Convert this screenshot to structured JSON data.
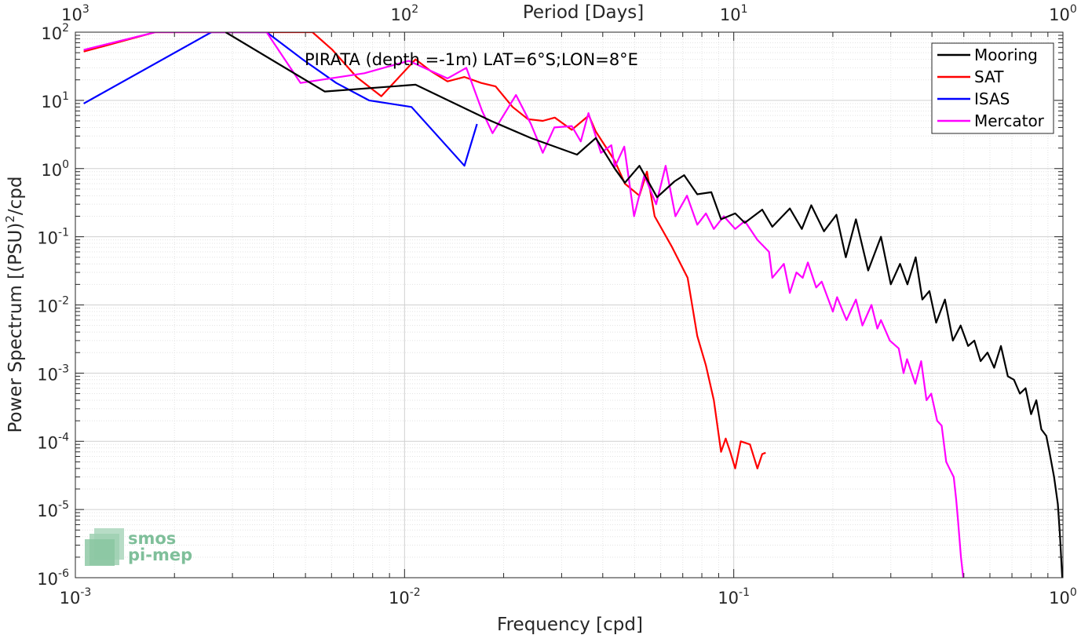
{
  "chart_data": {
    "type": "line",
    "title": "PIRATA (depth =-1m) LAT=6°S;LON=8°E",
    "xlabel": "Frequency [cpd]",
    "ylabel": "Power Spectrum [(PSU)",
    "ylabel_sup": "2",
    "ylabel_suffix": "/cpd",
    "top_xlabel": "Period [Days]",
    "x_scale": "log",
    "y_scale": "log",
    "xlim": [
      0.001,
      1
    ],
    "ylim": [
      1e-06,
      100
    ],
    "grid": true,
    "legend_position": "top-right",
    "x_ticks": [
      {
        "base": "10",
        "exp": "-3",
        "value": 0.001
      },
      {
        "base": "10",
        "exp": "-2",
        "value": 0.01
      },
      {
        "base": "10",
        "exp": "-1",
        "value": 0.1
      },
      {
        "base": "10",
        "exp": "0",
        "value": 1
      }
    ],
    "y_ticks": [
      {
        "base": "10",
        "exp": "-6",
        "value": 1e-06
      },
      {
        "base": "10",
        "exp": "-5",
        "value": 1e-05
      },
      {
        "base": "10",
        "exp": "-4",
        "value": 0.0001
      },
      {
        "base": "10",
        "exp": "-3",
        "value": 0.001
      },
      {
        "base": "10",
        "exp": "-2",
        "value": 0.01
      },
      {
        "base": "10",
        "exp": "-1",
        "value": 0.1
      },
      {
        "base": "10",
        "exp": "0",
        "value": 1
      },
      {
        "base": "10",
        "exp": "1",
        "value": 10
      },
      {
        "base": "10",
        "exp": "2",
        "value": 100
      }
    ],
    "top_ticks": [
      {
        "base": "10",
        "exp": "3",
        "value": 0.001
      },
      {
        "base": "10",
        "exp": "2",
        "value": 0.01
      },
      {
        "base": "10",
        "exp": "1",
        "value": 0.1
      },
      {
        "base": "10",
        "exp": "0",
        "value": 1
      }
    ],
    "series": [
      {
        "name": "Mooring",
        "color": "#000000",
        "points": [
          [
            0.00286,
            100
          ],
          [
            0.00572,
            13.5
          ],
          [
            0.0108,
            17
          ],
          [
            0.0183,
            5
          ],
          [
            0.0242,
            2.8
          ],
          [
            0.0334,
            1.6
          ],
          [
            0.0381,
            2.8
          ],
          [
            0.0435,
            1.0
          ],
          [
            0.0467,
            0.62
          ],
          [
            0.0517,
            1.1
          ],
          [
            0.0585,
            0.38
          ],
          [
            0.0661,
            0.65
          ],
          [
            0.0707,
            0.8
          ],
          [
            0.0775,
            0.42
          ],
          [
            0.0855,
            0.45
          ],
          [
            0.0915,
            0.18
          ],
          [
            0.101,
            0.22
          ],
          [
            0.108,
            0.16
          ],
          [
            0.122,
            0.25
          ],
          [
            0.131,
            0.14
          ],
          [
            0.148,
            0.26
          ],
          [
            0.161,
            0.13
          ],
          [
            0.172,
            0.29
          ],
          [
            0.188,
            0.12
          ],
          [
            0.205,
            0.21
          ],
          [
            0.219,
            0.05
          ],
          [
            0.235,
            0.18
          ],
          [
            0.256,
            0.032
          ],
          [
            0.28,
            0.1
          ],
          [
            0.3,
            0.02
          ],
          [
            0.32,
            0.04
          ],
          [
            0.337,
            0.02
          ],
          [
            0.357,
            0.05
          ],
          [
            0.374,
            0.012
          ],
          [
            0.393,
            0.016
          ],
          [
            0.412,
            0.0055
          ],
          [
            0.438,
            0.012
          ],
          [
            0.463,
            0.003
          ],
          [
            0.489,
            0.005
          ],
          [
            0.515,
            0.0025
          ],
          [
            0.538,
            0.003
          ],
          [
            0.562,
            0.0015
          ],
          [
            0.59,
            0.002
          ],
          [
            0.618,
            0.0012
          ],
          [
            0.648,
            0.0025
          ],
          [
            0.68,
            0.0009
          ],
          [
            0.71,
            0.0008
          ],
          [
            0.74,
            0.0005
          ],
          [
            0.77,
            0.0006
          ],
          [
            0.8,
            0.00025
          ],
          [
            0.83,
            0.0004
          ],
          [
            0.86,
            0.00015
          ],
          [
            0.89,
            0.00012
          ],
          [
            0.91,
            7e-05
          ],
          [
            0.94,
            3e-05
          ],
          [
            0.965,
            1.2e-05
          ],
          [
            0.98,
            4e-06
          ],
          [
            0.995,
            1e-06
          ]
        ]
      },
      {
        "name": "SAT",
        "color": "#ff0000",
        "points": [
          [
            0.00106,
            52
          ],
          [
            0.00175,
            100
          ],
          [
            0.00525,
            100
          ],
          [
            0.00604,
            55
          ],
          [
            0.00715,
            22
          ],
          [
            0.0085,
            11.5
          ],
          [
            0.0108,
            40
          ],
          [
            0.012,
            27
          ],
          [
            0.0135,
            19
          ],
          [
            0.0152,
            22
          ],
          [
            0.0171,
            18
          ],
          [
            0.0189,
            16
          ],
          [
            0.0213,
            8
          ],
          [
            0.0237,
            5.3
          ],
          [
            0.0263,
            5
          ],
          [
            0.0286,
            5.6
          ],
          [
            0.0322,
            3.7
          ],
          [
            0.0363,
            6
          ],
          [
            0.0381,
            3.5
          ],
          [
            0.0435,
            1.3
          ],
          [
            0.0467,
            0.6
          ],
          [
            0.0517,
            0.4
          ],
          [
            0.0545,
            0.9
          ],
          [
            0.0575,
            0.2
          ],
          [
            0.065,
            0.07
          ],
          [
            0.0724,
            0.025
          ],
          [
            0.0775,
            0.0035
          ],
          [
            0.0823,
            0.0013
          ],
          [
            0.087,
            0.0004
          ],
          [
            0.0915,
            7e-05
          ],
          [
            0.0945,
            0.00011
          ],
          [
            0.0976,
            7e-05
          ],
          [
            0.101,
            4e-05
          ],
          [
            0.105,
            0.0001
          ],
          [
            0.112,
            9e-05
          ],
          [
            0.118,
            4e-05
          ],
          [
            0.122,
            6.5e-05
          ],
          [
            0.125,
            6.8e-05
          ]
        ]
      },
      {
        "name": "ISAS",
        "color": "#0000ff",
        "points": [
          [
            0.00106,
            9
          ],
          [
            0.00259,
            100
          ],
          [
            0.00381,
            100
          ],
          [
            0.0049,
            40
          ],
          [
            0.0062,
            18
          ],
          [
            0.0078,
            10
          ],
          [
            0.0105,
            8
          ],
          [
            0.0152,
            1.1
          ],
          [
            0.0166,
            4.5
          ]
        ]
      },
      {
        "name": "Mercator",
        "color": "#ff00ff",
        "points": [
          [
            0.00106,
            55
          ],
          [
            0.00175,
            100
          ],
          [
            0.00381,
            100
          ],
          [
            0.00483,
            18
          ],
          [
            0.00755,
            25
          ],
          [
            0.0103,
            38
          ],
          [
            0.0135,
            21
          ],
          [
            0.0154,
            30
          ],
          [
            0.0172,
            7
          ],
          [
            0.0185,
            3.3
          ],
          [
            0.0218,
            12
          ],
          [
            0.0242,
            4.5
          ],
          [
            0.0263,
            1.7
          ],
          [
            0.0285,
            4
          ],
          [
            0.0322,
            4.2
          ],
          [
            0.0343,
            2.5
          ],
          [
            0.0362,
            6.5
          ],
          [
            0.0395,
            1.7
          ],
          [
            0.0425,
            2.2
          ],
          [
            0.0435,
            1.05
          ],
          [
            0.0465,
            2.1
          ],
          [
            0.0498,
            0.2
          ],
          [
            0.0535,
            0.8
          ],
          [
            0.0581,
            0.3
          ],
          [
            0.0621,
            1.1
          ],
          [
            0.0665,
            0.2
          ],
          [
            0.0721,
            0.4
          ],
          [
            0.0775,
            0.15
          ],
          [
            0.0823,
            0.22
          ],
          [
            0.087,
            0.13
          ],
          [
            0.0933,
            0.2
          ],
          [
            0.101,
            0.13
          ],
          [
            0.108,
            0.17
          ],
          [
            0.118,
            0.09
          ],
          [
            0.128,
            0.06
          ],
          [
            0.131,
            0.025
          ],
          [
            0.142,
            0.04
          ],
          [
            0.148,
            0.015
          ],
          [
            0.155,
            0.03
          ],
          [
            0.162,
            0.025
          ],
          [
            0.168,
            0.042
          ],
          [
            0.178,
            0.018
          ],
          [
            0.185,
            0.022
          ],
          [
            0.2,
            0.008
          ],
          [
            0.206,
            0.013
          ],
          [
            0.22,
            0.006
          ],
          [
            0.235,
            0.012
          ],
          [
            0.246,
            0.005
          ],
          [
            0.262,
            0.01
          ],
          [
            0.273,
            0.0045
          ],
          [
            0.28,
            0.006
          ],
          [
            0.298,
            0.003
          ],
          [
            0.317,
            0.0023
          ],
          [
            0.328,
            0.001
          ],
          [
            0.336,
            0.0016
          ],
          [
            0.356,
            0.0007
          ],
          [
            0.371,
            0.0015
          ],
          [
            0.385,
            0.0004
          ],
          [
            0.398,
            0.0005
          ],
          [
            0.415,
            0.0002
          ],
          [
            0.428,
            0.00017
          ],
          [
            0.442,
            5e-05
          ],
          [
            0.452,
            4e-05
          ],
          [
            0.466,
            3e-05
          ],
          [
            0.474,
            1.4e-05
          ],
          [
            0.48,
            7e-06
          ],
          [
            0.49,
            2e-06
          ],
          [
            0.498,
            1e-06
          ]
        ]
      }
    ]
  },
  "logo": {
    "line1": "smos",
    "line2": "pi-mep"
  }
}
